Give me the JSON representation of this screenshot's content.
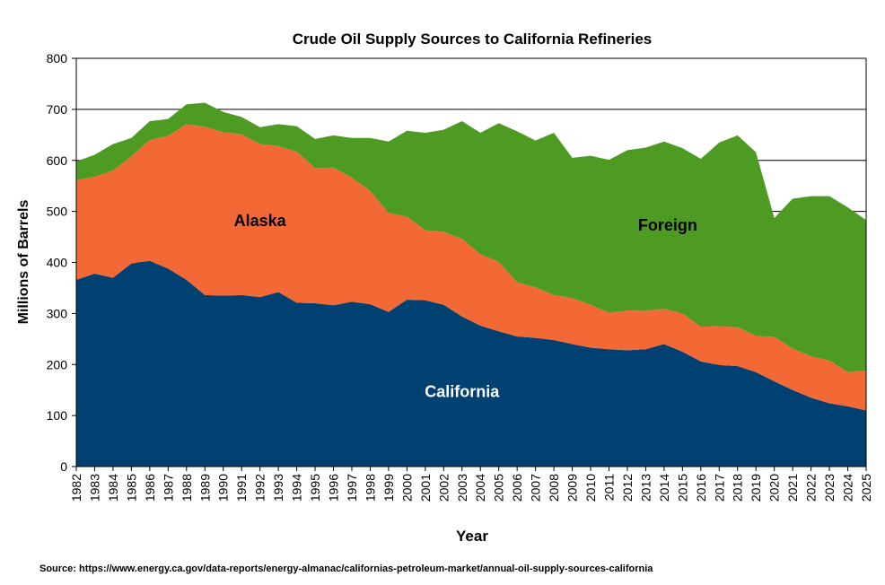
{
  "chart_data": {
    "type": "area",
    "stacked": true,
    "title": "Crude Oil Supply Sources to California Refineries",
    "xlabel": "Year",
    "ylabel": "Millions of Barrels",
    "ylim": [
      0,
      800
    ],
    "yticks": [
      "0",
      "100",
      "200",
      "300",
      "400",
      "500",
      "600",
      "700",
      "800"
    ],
    "grid": "horizontal",
    "categories": [
      "1982",
      "1983",
      "1984",
      "1985",
      "1986",
      "1987",
      "1988",
      "1989",
      "1990",
      "1991",
      "1992",
      "1993",
      "1994",
      "1995",
      "1996",
      "1997",
      "1998",
      "1999",
      "2000",
      "2001",
      "2002",
      "2003",
      "2004",
      "2005",
      "2006",
      "2007",
      "2008",
      "2009",
      "2010",
      "2011",
      "2012",
      "2013",
      "2014",
      "2015",
      "2016",
      "2017",
      "2018",
      "2019",
      "2020",
      "2021",
      "2022",
      "2023",
      "2024",
      "2025"
    ],
    "series": [
      {
        "name": "California",
        "color": "#004172",
        "label_color": "#ffffff",
        "values": [
          366,
          378,
          370,
          398,
          403,
          388,
          366,
          336,
          335,
          336,
          332,
          342,
          321,
          320,
          316,
          323,
          318,
          303,
          327,
          326,
          317,
          294,
          276,
          265,
          255,
          252,
          248,
          240,
          233,
          230,
          228,
          230,
          240,
          225,
          206,
          199,
          197,
          185,
          167,
          150,
          135,
          124,
          118,
          110
        ]
      },
      {
        "name": "Alaska",
        "color": "#F26935",
        "label_color": "#000000",
        "values": [
          195,
          190,
          210,
          210,
          237,
          260,
          305,
          330,
          320,
          315,
          300,
          286,
          296,
          265,
          270,
          243,
          222,
          194,
          163,
          137,
          143,
          152,
          140,
          136,
          106,
          99,
          88,
          90,
          84,
          71,
          78,
          75,
          69,
          75,
          68,
          76,
          76,
          71,
          87,
          81,
          81,
          84,
          67,
          78
        ]
      },
      {
        "name": "Foreign",
        "color": "#4E9B24",
        "label_color": "#000000",
        "values": [
          37,
          43,
          52,
          36,
          37,
          33,
          39,
          47,
          40,
          34,
          33,
          43,
          50,
          57,
          63,
          78,
          104,
          140,
          168,
          191,
          200,
          231,
          238,
          272,
          296,
          288,
          318,
          275,
          292,
          300,
          314,
          320,
          328,
          324,
          329,
          360,
          376,
          360,
          233,
          294,
          314,
          322,
          323,
          295
        ]
      }
    ],
    "source": "Source: https://www.energy.ca.gov/data-reports/energy-almanac/californias-petroleum-market/annual-oil-supply-sources-california"
  }
}
